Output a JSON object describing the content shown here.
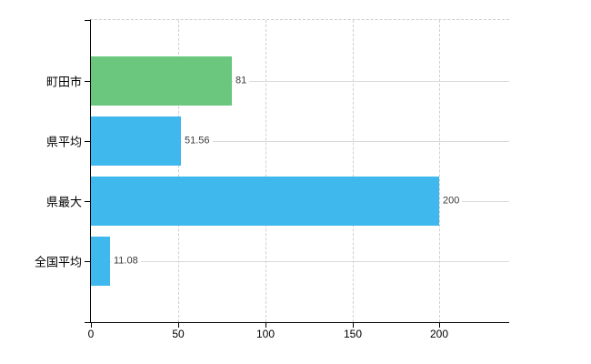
{
  "background_color": "#ffffff",
  "chart_data": {
    "type": "bar",
    "orientation": "horizontal",
    "title": "",
    "xlabel": "",
    "ylabel": "",
    "categories": [
      "町田市",
      "県平均",
      "県最大",
      "全国平均"
    ],
    "values": [
      81,
      51.56,
      200,
      11.08
    ],
    "value_labels": [
      "81",
      "51.56",
      "200",
      "11.08"
    ],
    "bar_colors": [
      "#6cc77e",
      "#3eb8ed",
      "#3eb8ed",
      "#3eb8ed"
    ],
    "x_tick_values": [
      0,
      50,
      100,
      150,
      200
    ],
    "x_tick_labels": [
      "0",
      "50",
      "100",
      "150",
      "200"
    ],
    "xlim": [
      0,
      240
    ],
    "legend": "none",
    "grid": {
      "vertical_style": "dashed",
      "vertical_color": "#d2cdd2",
      "horizontal_style": "solid",
      "horizontal_color": "#d9d9d9"
    },
    "axis_color": "#000000",
    "value_label_color": "#3a3a3a"
  }
}
